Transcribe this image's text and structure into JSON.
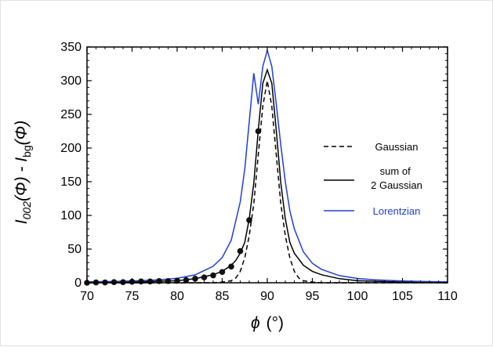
{
  "chart_data": {
    "type": "line",
    "xlabel_symbol": "ϕ",
    "xlabel_unit": "(°)",
    "ylabel": {
      "part1": "I",
      "part1_sub": "002",
      "part2": "(Φ) - I",
      "part2_sub": "bg",
      "part3": "(Φ)"
    },
    "xlim": [
      70,
      110
    ],
    "ylim": [
      0,
      350
    ],
    "x_ticks": [
      70,
      75,
      80,
      85,
      90,
      95,
      100,
      105,
      110
    ],
    "y_ticks": [
      0,
      50,
      100,
      150,
      200,
      250,
      300,
      350
    ],
    "grid": false,
    "legend_position": "right",
    "series": [
      {
        "name": "Gaussian",
        "style": "dashed",
        "color": "#000000",
        "x": [
          70,
          80,
          84,
          85,
          86,
          86.5,
          87,
          87.5,
          88,
          88.5,
          89,
          89.5,
          90,
          90.5,
          91,
          91.5,
          92,
          92.5,
          93,
          93.5,
          94,
          95,
          96,
          100,
          110
        ],
        "y": [
          0,
          0,
          0,
          1,
          3,
          7,
          17,
          37,
          70,
          117,
          190,
          262,
          300,
          262,
          190,
          117,
          70,
          37,
          17,
          7,
          3,
          1,
          0,
          0,
          0
        ]
      },
      {
        "name": "sum of 2 Gaussian",
        "style": "solid",
        "color": "#000000",
        "x": [
          70,
          75,
          80,
          82,
          84,
          85,
          86,
          86.5,
          87,
          87.5,
          88,
          88.5,
          89,
          89.5,
          90,
          90.5,
          91,
          91.5,
          92,
          92.5,
          93,
          94,
          95,
          96,
          98,
          100,
          105,
          110
        ],
        "y": [
          0,
          1,
          3,
          6,
          12,
          17,
          26,
          33,
          44,
          60,
          95,
          148,
          226,
          296,
          316,
          296,
          226,
          148,
          95,
          60,
          44,
          26,
          17,
          12,
          6,
          3,
          1,
          0
        ]
      },
      {
        "name": "Lorentzian",
        "style": "solid",
        "color": "#1f3fd8",
        "x": [
          70,
          72,
          74,
          76,
          78,
          80,
          82,
          84,
          85,
          86,
          87,
          87.5,
          88,
          88.5,
          89,
          89.5,
          90,
          90.5,
          91,
          91.5,
          92,
          92.5,
          93,
          94,
          95,
          96,
          98,
          100,
          102,
          104,
          106,
          108,
          110
        ],
        "y": [
          1.5,
          1.8,
          2.3,
          3.1,
          4.4,
          6.8,
          11.7,
          24.5,
          37.4,
          63.1,
          120,
          169,
          239,
          311,
          265,
          321,
          345,
          321,
          265,
          204,
          150,
          107,
          80,
          46,
          29,
          20,
          10.6,
          6.4,
          4.3,
          3.1,
          2.3,
          1.8,
          1.5
        ]
      }
    ],
    "scatter": {
      "color": "#111111",
      "x": [
        70,
        71,
        72,
        73,
        74,
        75,
        76,
        77,
        78,
        79,
        80,
        81,
        82,
        83,
        84,
        85,
        86,
        87,
        88,
        89
      ],
      "y": [
        0,
        0.5,
        0.5,
        1,
        1,
        1.5,
        2,
        2,
        2.5,
        2.5,
        3,
        4,
        6,
        8,
        11,
        16,
        24,
        47,
        93,
        225
      ]
    }
  }
}
